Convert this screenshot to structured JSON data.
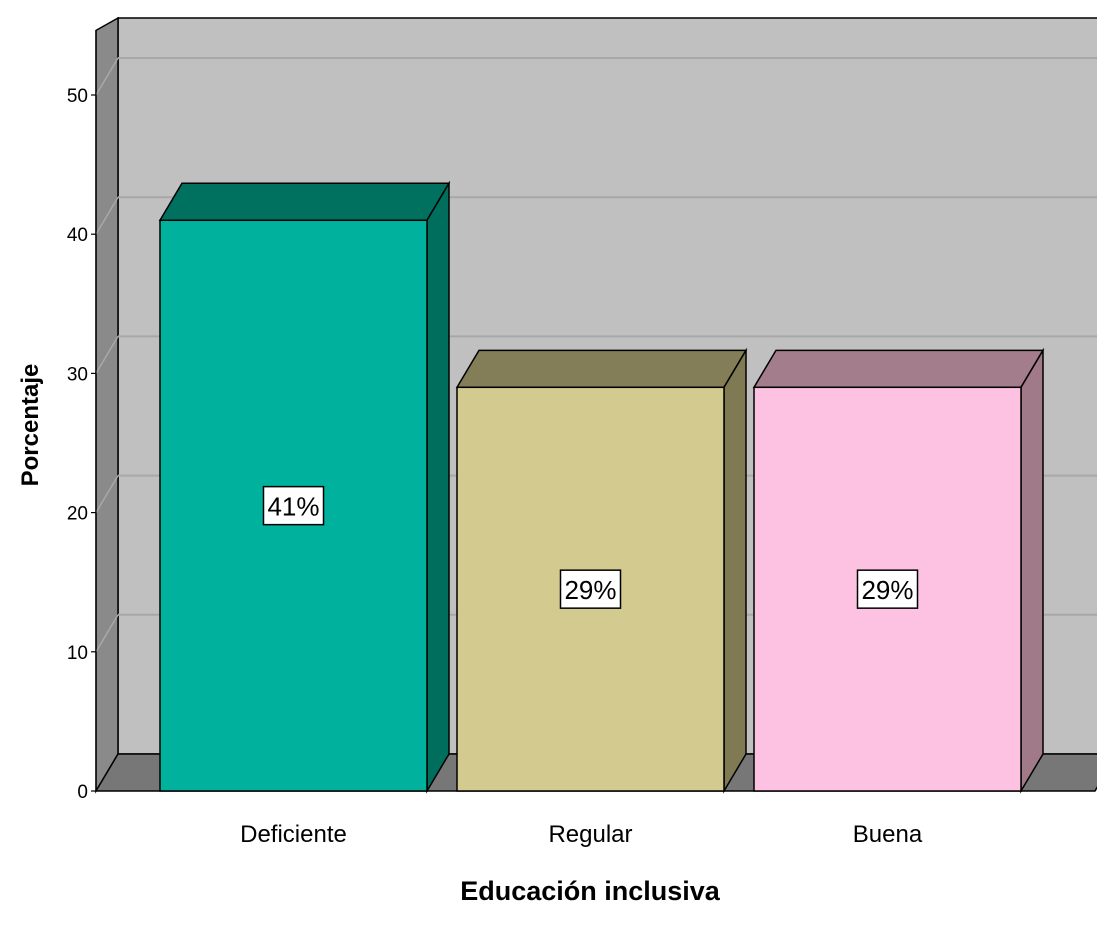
{
  "chart_data": {
    "type": "bar",
    "style": "3d",
    "title": "",
    "xlabel": "Educación inclusiva",
    "ylabel": "Porcentaje",
    "ylim": [
      0,
      55
    ],
    "yticks": [
      0,
      10,
      20,
      30,
      40,
      50
    ],
    "grid": true,
    "categories": [
      "Deficiente",
      "Regular",
      "Buena"
    ],
    "values": [
      41,
      29,
      29
    ],
    "data_labels": [
      "41%",
      "29%",
      "29%"
    ],
    "colors": {
      "bars": [
        "#00b19e",
        "#d2ca8f",
        "#fdc2e1"
      ],
      "bar_tops": [
        "#00705f",
        "#837d58",
        "#a47d8c"
      ],
      "bar_sides": [
        "#006e5c",
        "#7f7954",
        "#a07a88"
      ],
      "wall": "#c0c0c0",
      "side_wall": "#8a8a8a",
      "floor": "#777777",
      "gridline": "#a8a8a8"
    }
  }
}
